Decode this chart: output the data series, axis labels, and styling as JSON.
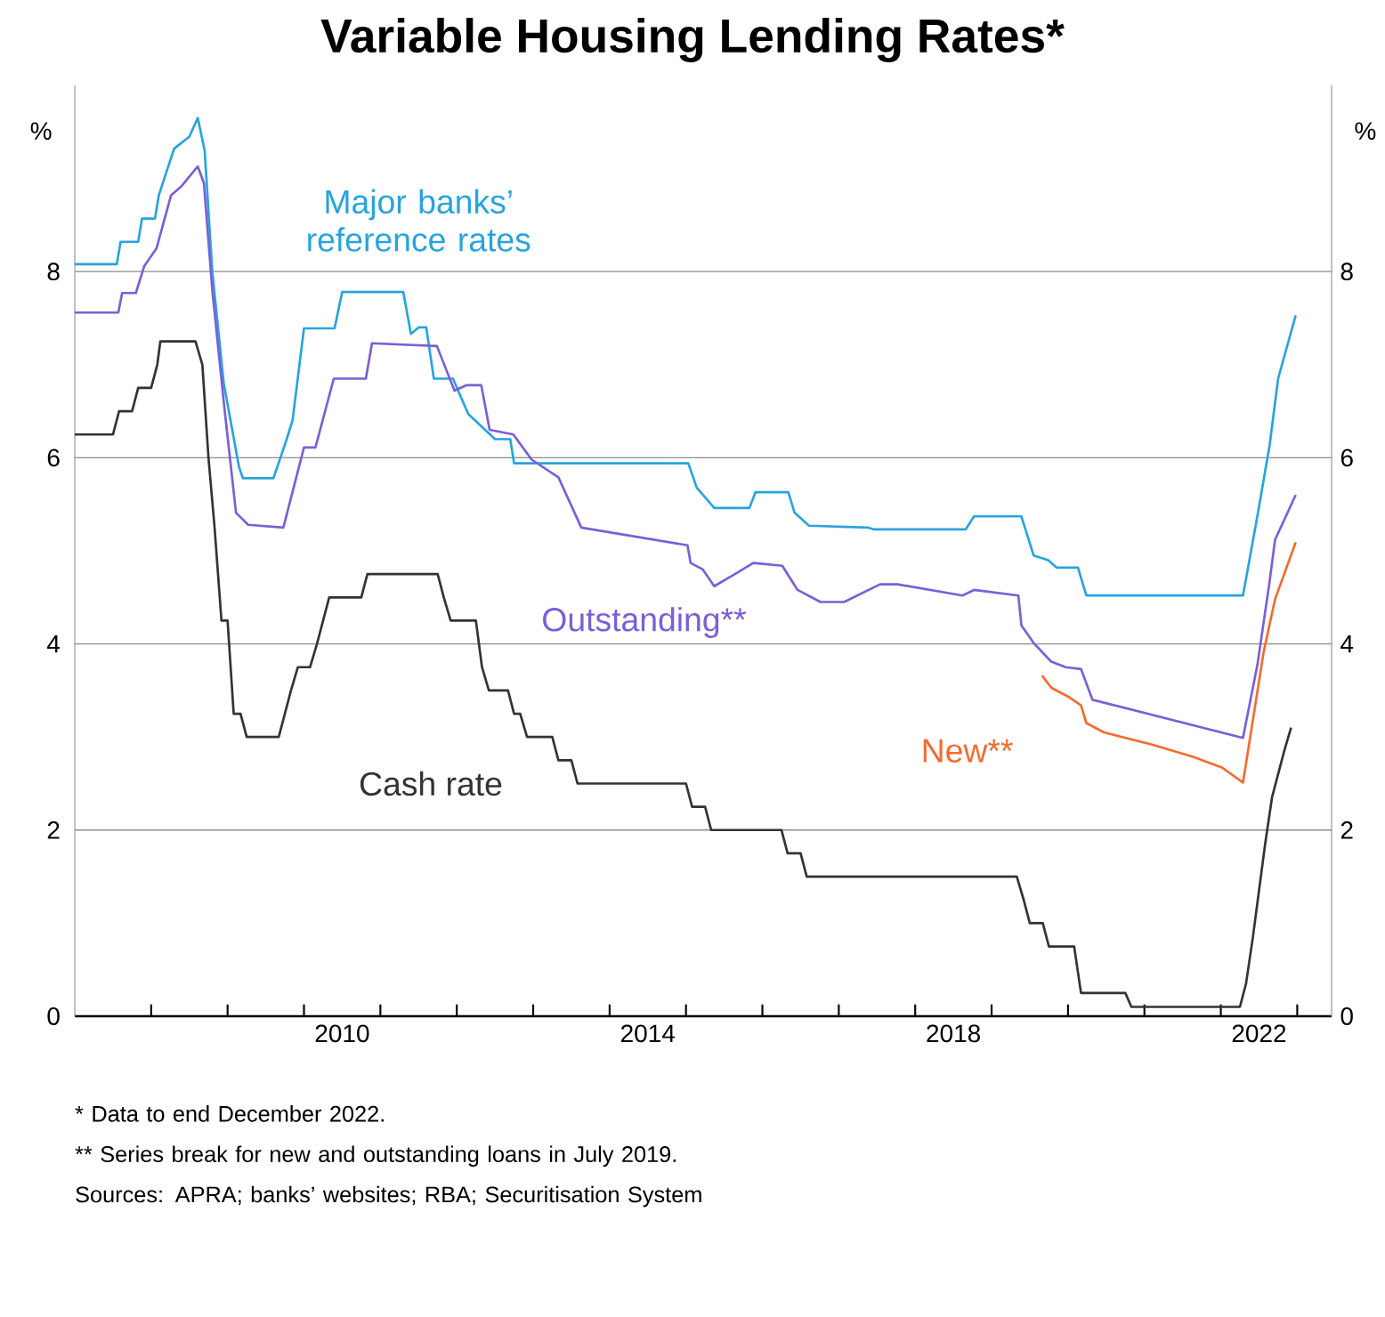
{
  "chart_data": {
    "type": "line",
    "title": "Variable Housing Lending Rates*",
    "ylabel": "%",
    "y2label": "%",
    "xlim": [
      2007,
      2023.45
    ],
    "ylim": [
      0,
      10
    ],
    "y2lim": [
      0,
      10
    ],
    "xticks": [
      {
        "value": 2008,
        "label": null
      },
      {
        "value": 2009,
        "label": null
      },
      {
        "value": 2010,
        "label": null
      },
      {
        "value": 2011,
        "label": null
      },
      {
        "value": 2012,
        "label": null
      },
      {
        "value": 2013,
        "label": null
      },
      {
        "value": 2014,
        "label": null
      },
      {
        "value": 2015,
        "label": null
      },
      {
        "value": 2016,
        "label": null
      },
      {
        "value": 2017,
        "label": null
      },
      {
        "value": 2018,
        "label": null
      },
      {
        "value": 2019,
        "label": null
      },
      {
        "value": 2020,
        "label": null
      },
      {
        "value": 2021,
        "label": null
      },
      {
        "value": 2022,
        "label": null
      },
      {
        "value": 2023,
        "label": null
      },
      {
        "value": 2010.5,
        "label": "2010"
      },
      {
        "value": 2014.5,
        "label": "2014"
      },
      {
        "value": 2018.5,
        "label": "2018"
      },
      {
        "value": 2022.5,
        "label": "2022"
      }
    ],
    "yticks": [
      0,
      2,
      4,
      6,
      8
    ],
    "y2ticks": [
      0,
      2,
      4,
      6,
      8
    ],
    "grid": "y",
    "series": [
      {
        "name": "Major banks’ reference rates",
        "color": "#29a3dd",
        "x": [
          2007.0,
          2007.55,
          2007.6,
          2007.83,
          2007.88,
          2008.05,
          2008.1,
          2008.2,
          2008.3,
          2008.5,
          2008.61,
          2008.7,
          2008.8,
          2008.95,
          2009.15,
          2009.2,
          2009.6,
          2009.75,
          2009.85,
          2010.0,
          2010.4,
          2010.5,
          2011.3,
          2011.4,
          2011.5,
          2011.6,
          2011.7,
          2011.95,
          2012.15,
          2012.5,
          2012.7,
          2012.75,
          2015.03,
          2015.14,
          2015.37,
          2015.83,
          2015.91,
          2016.34,
          2016.42,
          2016.61,
          2017.38,
          2017.46,
          2018.66,
          2018.77,
          2019.39,
          2019.55,
          2019.74,
          2019.85,
          2020.13,
          2020.24,
          2022.29,
          2022.48,
          2022.64,
          2022.75,
          2022.98
        ],
        "values": [
          8.08,
          8.08,
          8.32,
          8.32,
          8.57,
          8.57,
          8.82,
          9.07,
          9.32,
          9.45,
          9.65,
          9.3,
          8.0,
          6.8,
          5.9,
          5.78,
          5.78,
          6.14,
          6.4,
          7.39,
          7.39,
          7.78,
          7.78,
          7.33,
          7.4,
          7.4,
          6.85,
          6.85,
          6.47,
          6.2,
          6.2,
          5.94,
          5.94,
          5.68,
          5.46,
          5.46,
          5.63,
          5.63,
          5.41,
          5.27,
          5.25,
          5.23,
          5.23,
          5.37,
          5.37,
          4.95,
          4.9,
          4.82,
          4.82,
          4.52,
          4.52,
          5.38,
          6.14,
          6.85,
          7.53
        ]
      },
      {
        "name": "Outstanding**",
        "color": "#7b5fd6",
        "x": [
          2007.0,
          2007.57,
          2007.62,
          2007.8,
          2007.91,
          2008.07,
          2008.26,
          2008.4,
          2008.61,
          2008.69,
          2008.8,
          2008.95,
          2009.11,
          2009.27,
          2009.73,
          2010.0,
          2010.15,
          2010.39,
          2010.81,
          2010.89,
          2011.74,
          2011.97,
          2012.13,
          2012.32,
          2012.43,
          2012.74,
          2012.98,
          2013.33,
          2013.63,
          2015.02,
          2015.06,
          2015.22,
          2015.37,
          2015.68,
          2015.88,
          2016.26,
          2016.46,
          2016.76,
          2017.07,
          2017.54,
          2017.77,
          2018.62,
          2018.77,
          2019.35,
          2019.39,
          2019.55,
          2019.78,
          2019.97,
          2020.17,
          2020.32,
          2022.29,
          2022.48,
          2022.64,
          2022.71,
          2022.98
        ],
        "values": [
          7.56,
          7.56,
          7.77,
          7.77,
          8.06,
          8.25,
          8.82,
          8.92,
          9.13,
          8.95,
          7.8,
          6.6,
          5.41,
          5.28,
          5.25,
          6.11,
          6.11,
          6.85,
          6.85,
          7.23,
          7.2,
          6.72,
          6.78,
          6.78,
          6.3,
          6.25,
          5.98,
          5.79,
          5.25,
          5.06,
          4.87,
          4.8,
          4.62,
          4.77,
          4.87,
          4.84,
          4.58,
          4.45,
          4.45,
          4.64,
          4.64,
          4.52,
          4.58,
          4.52,
          4.2,
          4.01,
          3.81,
          3.75,
          3.73,
          3.4,
          2.99,
          3.78,
          4.68,
          5.12,
          5.6
        ]
      },
      {
        "name": "New**",
        "color": "#f26c2e",
        "x": [
          2019.66,
          2019.78,
          2020.01,
          2020.17,
          2020.24,
          2020.47,
          2021.09,
          2021.63,
          2022.02,
          2022.29,
          2022.56,
          2022.71,
          2022.98
        ],
        "values": [
          3.66,
          3.53,
          3.43,
          3.34,
          3.15,
          3.05,
          2.92,
          2.79,
          2.67,
          2.51,
          3.91,
          4.48,
          5.09
        ]
      },
      {
        "name": "Cash rate",
        "color": "#333333",
        "x": [
          2007.0,
          2007.5,
          2007.58,
          2007.75,
          2007.83,
          2008.0,
          2008.08,
          2008.12,
          2008.58,
          2008.67,
          2008.75,
          2008.83,
          2008.92,
          2009.0,
          2009.08,
          2009.17,
          2009.25,
          2009.67,
          2009.75,
          2009.83,
          2009.92,
          2010.08,
          2010.17,
          2010.25,
          2010.33,
          2010.75,
          2010.83,
          2011.75,
          2011.83,
          2011.92,
          2012.25,
          2012.33,
          2012.42,
          2012.67,
          2012.75,
          2012.83,
          2012.92,
          2013.25,
          2013.33,
          2013.5,
          2013.58,
          2015.0,
          2015.08,
          2015.25,
          2015.33,
          2016.25,
          2016.33,
          2016.5,
          2016.58,
          2019.33,
          2019.42,
          2019.5,
          2019.67,
          2019.75,
          2020.08,
          2020.17,
          2020.75,
          2020.83,
          2022.25,
          2022.33,
          2022.42,
          2022.5,
          2022.58,
          2022.67,
          2022.75,
          2022.83,
          2022.92
        ],
        "values": [
          6.25,
          6.25,
          6.5,
          6.5,
          6.75,
          6.75,
          7.0,
          7.25,
          7.25,
          7.0,
          6.0,
          5.25,
          4.25,
          4.25,
          3.25,
          3.25,
          3.0,
          3.0,
          3.25,
          3.5,
          3.75,
          3.75,
          4.0,
          4.25,
          4.5,
          4.5,
          4.75,
          4.75,
          4.5,
          4.25,
          4.25,
          3.75,
          3.5,
          3.5,
          3.25,
          3.25,
          3.0,
          3.0,
          2.75,
          2.75,
          2.5,
          2.5,
          2.25,
          2.25,
          2.0,
          2.0,
          1.75,
          1.75,
          1.5,
          1.5,
          1.25,
          1.0,
          1.0,
          0.75,
          0.75,
          0.25,
          0.25,
          0.1,
          0.1,
          0.35,
          0.85,
          1.35,
          1.85,
          2.35,
          2.6,
          2.85,
          3.1
        ]
      }
    ],
    "annotations": [
      "* Data to end December 2022.",
      "** Series break for new and outstanding loans in July 2019.",
      "Sources: APRA; banks’ websites; RBA; Securitisation System"
    ]
  }
}
